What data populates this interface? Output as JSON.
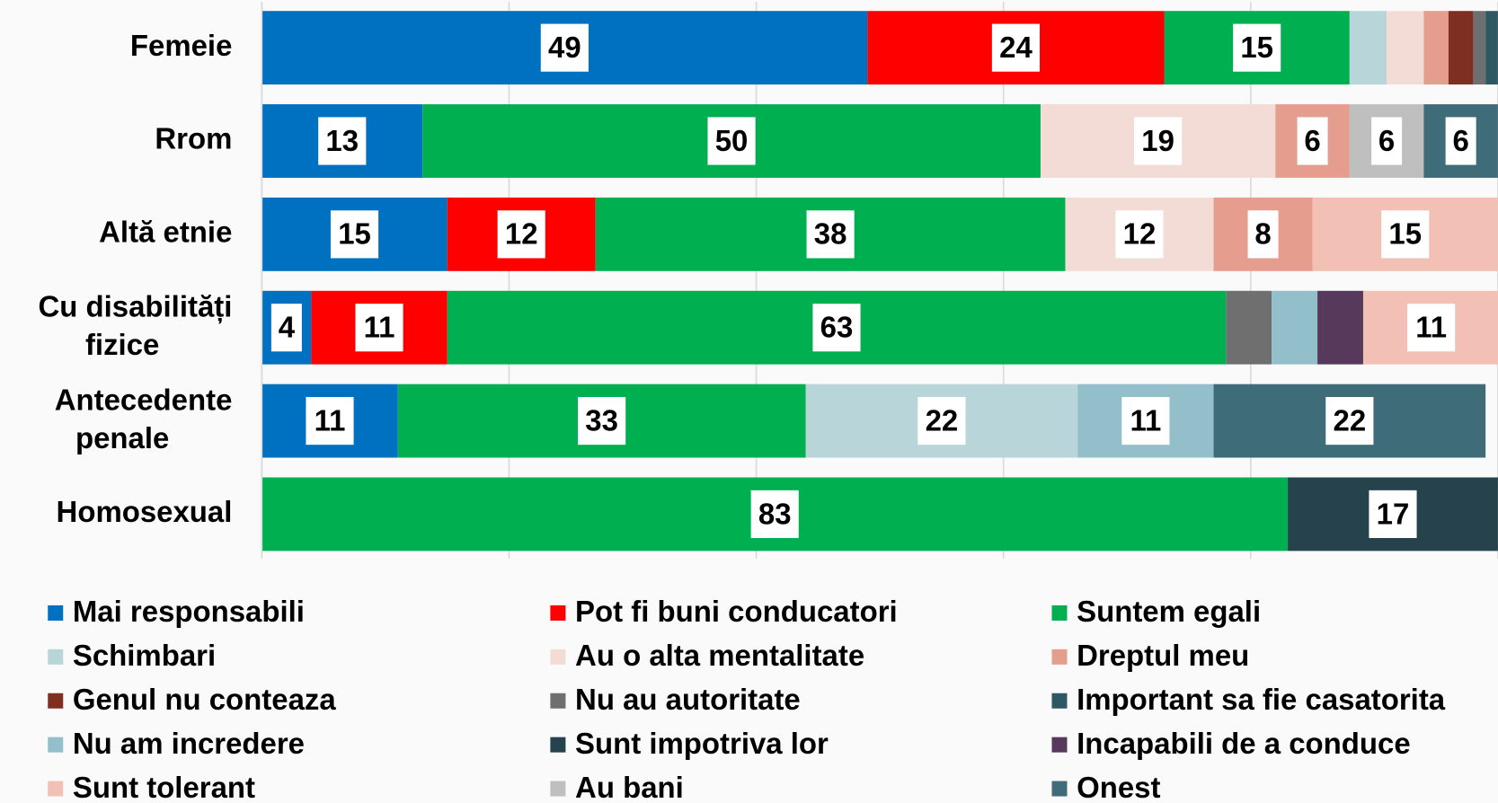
{
  "chart_data": {
    "type": "stacked-barh",
    "categories": [
      "Femeie",
      "Rrom",
      "Altă etnie",
      "Cu disabilități fizice",
      "Antecedente penale",
      "Homosexual"
    ],
    "xlim": [
      0,
      100
    ],
    "xticks": [
      0,
      20,
      40,
      60,
      80,
      100
    ],
    "grid": true,
    "legend": "bottom",
    "series": [
      {
        "name": "Mai responsabili",
        "color": "#0070c0",
        "values": [
          49,
          13,
          15,
          4,
          11,
          null
        ]
      },
      {
        "name": "Pot fi buni conducatori",
        "color": "#ff0000",
        "values": [
          24,
          null,
          12,
          11,
          null,
          null
        ]
      },
      {
        "name": "Suntem egali",
        "color": "#00b050",
        "values": [
          15,
          50,
          38,
          63,
          33,
          83
        ]
      },
      {
        "name": "Schimbari",
        "color": "#b8d5da",
        "values": [
          3,
          null,
          null,
          null,
          22,
          null
        ]
      },
      {
        "name": "Au o alta mentalitate",
        "color": "#f3dcd6",
        "values": [
          3,
          19,
          12,
          null,
          null,
          null
        ]
      },
      {
        "name": "Dreptul meu",
        "color": "#e59e8d",
        "values": [
          2,
          6,
          8,
          null,
          null,
          null
        ]
      },
      {
        "name": "Genul nu conteaza",
        "color": "#7f2f22",
        "values": [
          2,
          null,
          null,
          null,
          null,
          null
        ]
      },
      {
        "name": "Nu au autoritate",
        "color": "#6f6f6f",
        "values": [
          1,
          null,
          null,
          3.7,
          null,
          null
        ]
      },
      {
        "name": "Important sa fie casatorita",
        "color": "#2e5863",
        "values": [
          1,
          null,
          null,
          null,
          null,
          null
        ]
      },
      {
        "name": "Nu am incredere",
        "color": "#93bfca",
        "values": [
          null,
          null,
          null,
          3.7,
          11,
          null
        ]
      },
      {
        "name": "Sunt impotriva lor",
        "color": "#26434d",
        "values": [
          null,
          null,
          null,
          null,
          null,
          17
        ]
      },
      {
        "name": "Incapabili de a conduce",
        "color": "#573a5b",
        "values": [
          null,
          null,
          null,
          3.7,
          null,
          null
        ]
      },
      {
        "name": "Sunt tolerant",
        "color": "#f2c0b4",
        "values": [
          null,
          null,
          15,
          11,
          null,
          null
        ]
      },
      {
        "name": "Au bani",
        "color": "#bfbfbf",
        "values": [
          null,
          6,
          null,
          null,
          null,
          null
        ]
      },
      {
        "name": "Onest",
        "color": "#3e6d79",
        "values": [
          null,
          6,
          null,
          null,
          22,
          null
        ]
      }
    ]
  }
}
